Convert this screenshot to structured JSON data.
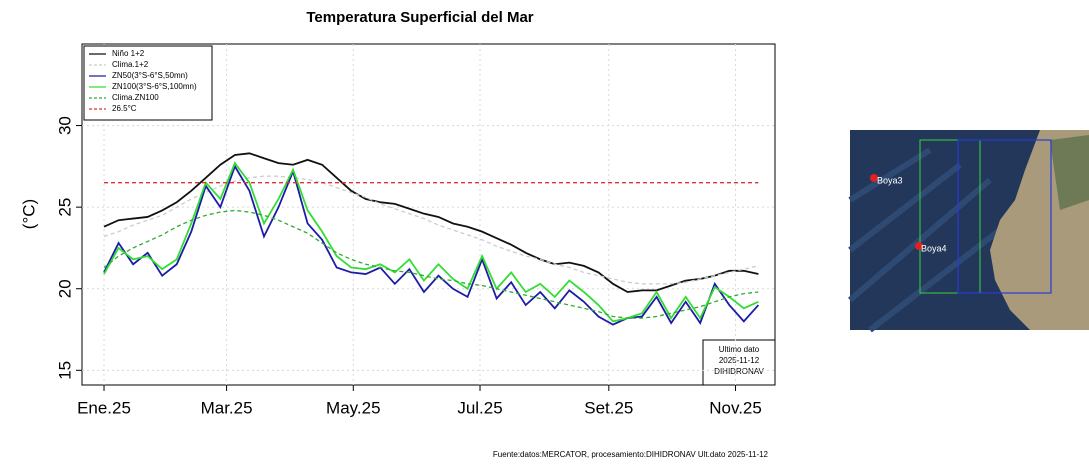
{
  "chart_data": {
    "type": "line",
    "title": "Temperatura Superficial del Mar",
    "ylabel": "(°C)",
    "x": [
      1,
      8,
      15,
      22,
      29,
      36,
      43,
      50,
      57,
      64,
      71,
      78,
      85,
      92,
      99,
      106,
      113,
      120,
      127,
      134,
      141,
      148,
      155,
      162,
      169,
      176,
      183,
      190,
      197,
      204,
      211,
      218,
      225,
      232,
      239,
      246,
      253,
      260,
      267,
      274,
      281,
      288,
      295,
      302,
      309,
      316
    ],
    "xlim": [
      -9.6,
      324
    ],
    "xticks": [
      {
        "value": 1,
        "label": "Ene.25"
      },
      {
        "value": 60,
        "label": "Mar.25"
      },
      {
        "value": 121,
        "label": "May.25"
      },
      {
        "value": 182,
        "label": "Jul.25"
      },
      {
        "value": 244,
        "label": "Set.25"
      },
      {
        "value": 305,
        "label": "Nov.25"
      }
    ],
    "ylim": [
      14.1,
      35.0
    ],
    "yticks": [
      15,
      20,
      25,
      30
    ],
    "grid": true,
    "legend": "top-left",
    "series": [
      {
        "name": "Niño 1+2",
        "color": "#111111",
        "dash": "solid",
        "values": [
          23.8,
          24.2,
          24.3,
          24.4,
          24.8,
          25.3,
          26.0,
          26.8,
          27.6,
          28.2,
          28.3,
          28.0,
          27.7,
          27.6,
          27.9,
          27.6,
          26.8,
          26.0,
          25.5,
          25.3,
          25.2,
          24.9,
          24.6,
          24.4,
          24.0,
          23.8,
          23.5,
          23.1,
          22.7,
          22.2,
          21.8,
          21.5,
          21.6,
          21.4,
          21.0,
          20.3,
          19.8,
          19.9,
          19.9,
          20.2,
          20.5,
          20.6,
          20.8,
          21.1,
          21.1,
          20.9
        ]
      },
      {
        "name": "Clima.1+2",
        "color": "#cccccc",
        "dash": "dashed",
        "values": [
          23.2,
          23.5,
          23.9,
          24.2,
          24.5,
          25.0,
          25.5,
          25.9,
          26.3,
          26.6,
          26.8,
          26.9,
          26.9,
          26.8,
          26.7,
          26.5,
          26.2,
          25.9,
          25.6,
          25.2,
          24.9,
          24.6,
          24.3,
          23.9,
          23.6,
          23.3,
          23.0,
          22.6,
          22.3,
          22.0,
          21.8,
          21.5,
          21.3,
          21.0,
          20.8,
          20.6,
          20.4,
          20.3,
          20.3,
          20.3,
          20.4,
          20.6,
          20.8,
          21.0,
          21.2,
          21.4
        ]
      },
      {
        "name": "ZN50(3°S-6°S,50mn)",
        "color": "#1c1ca8",
        "dash": "solid",
        "values": [
          21.0,
          22.8,
          21.5,
          22.2,
          20.8,
          21.5,
          23.5,
          26.3,
          25.0,
          27.5,
          26.0,
          23.2,
          25.0,
          27.2,
          24.0,
          23.0,
          21.3,
          21.0,
          20.9,
          21.3,
          20.3,
          21.2,
          19.8,
          20.8,
          20.0,
          19.5,
          21.8,
          19.4,
          20.4,
          19.0,
          19.8,
          18.8,
          19.9,
          19.2,
          18.3,
          17.8,
          18.2,
          18.3,
          19.5,
          17.9,
          19.2,
          17.9,
          20.3,
          19.0,
          18.0,
          19.0
        ]
      },
      {
        "name": "ZN100(3°S-6°S,100mn)",
        "color": "#33dd33",
        "dash": "solid",
        "values": [
          20.9,
          22.5,
          21.8,
          22.0,
          21.2,
          21.8,
          24.0,
          26.5,
          25.5,
          27.7,
          26.5,
          24.0,
          25.5,
          27.3,
          24.8,
          23.5,
          22.0,
          21.3,
          21.2,
          21.5,
          21.0,
          21.8,
          20.5,
          21.5,
          20.6,
          20.0,
          22.0,
          20.0,
          21.0,
          19.8,
          20.3,
          19.5,
          20.5,
          19.8,
          19.0,
          18.0,
          18.2,
          18.5,
          19.8,
          18.2,
          19.5,
          18.2,
          20.1,
          19.5,
          18.8,
          19.2
        ]
      },
      {
        "name": "Clima.ZN100",
        "color": "#33aa33",
        "dash": "dashed",
        "values": [
          21.3,
          22.0,
          22.5,
          22.9,
          23.3,
          23.8,
          24.2,
          24.5,
          24.7,
          24.8,
          24.7,
          24.5,
          24.2,
          23.8,
          23.4,
          22.8,
          22.2,
          21.8,
          21.5,
          21.3,
          21.1,
          21.0,
          20.8,
          20.6,
          20.5,
          20.3,
          20.2,
          20.0,
          19.8,
          19.6,
          19.4,
          19.2,
          19.0,
          18.8,
          18.6,
          18.3,
          18.2,
          18.2,
          18.3,
          18.5,
          18.7,
          18.9,
          19.2,
          19.5,
          19.7,
          19.8
        ]
      },
      {
        "name": "26.5°C",
        "color": "#dd3333",
        "dash": "dashed",
        "x": [
          1,
          316
        ],
        "values": [
          26.5,
          26.5
        ]
      }
    ],
    "annotation": [
      "Ultimo dato",
      "2025-11-12",
      "DIHIDRONAV"
    ],
    "source": "Fuente:datos:MERCATOR, procesamiento:DIHIDRONAV Ult.dato 2025-11-12"
  },
  "map": {
    "labels": [
      "Boya3",
      "Boya4"
    ]
  }
}
